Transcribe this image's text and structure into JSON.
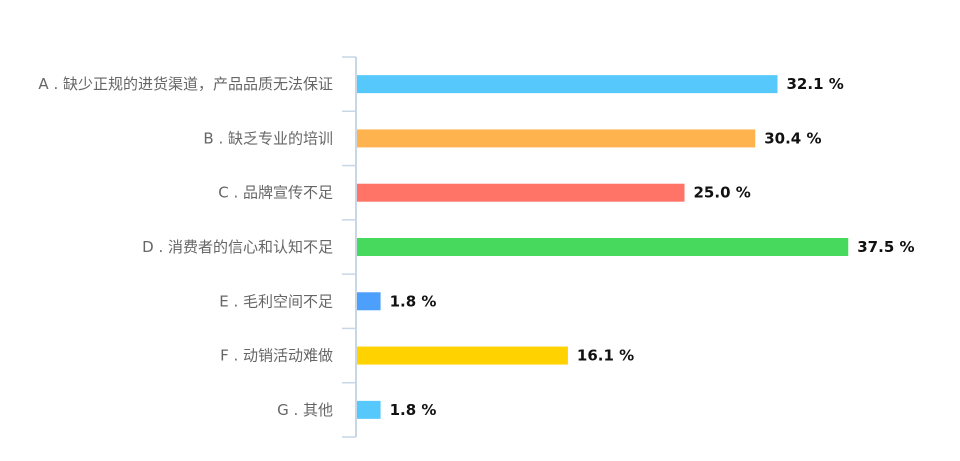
{
  "chart_data": {
    "type": "bar",
    "orientation": "horizontal",
    "categories": [
      "A . 缺少正规的进货渠道，产品品质无法保证",
      "B . 缺乏专业的培训",
      "C . 品牌宣传不足",
      "D . 消费者的信心和认知不足",
      "E . 毛利空间不足",
      "F . 动销活动难做",
      "G . 其他"
    ],
    "values": [
      32.1,
      30.4,
      25.0,
      37.5,
      1.8,
      16.1,
      1.8
    ],
    "value_labels": [
      "32.1 %",
      "30.4 %",
      "25.0 %",
      "37.5 %",
      "1.8 %",
      "16.1 %",
      "1.8 %"
    ],
    "colors": [
      "#56c8fc",
      "#ffb34e",
      "#ff7466",
      "#46d95e",
      "#4d9ffc",
      "#ffd200",
      "#56c8fc"
    ],
    "unit": "%",
    "xlim": [
      0,
      40
    ],
    "grid": false,
    "legend": "none"
  }
}
